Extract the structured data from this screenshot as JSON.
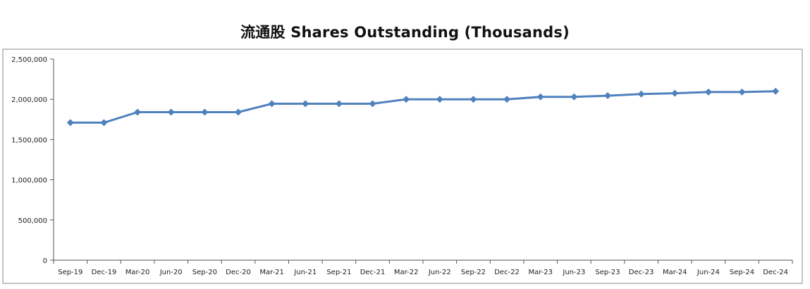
{
  "chart_data": {
    "type": "line",
    "title": "流通股 Shares Outstanding (Thousands)",
    "xlabel": "",
    "ylabel": "",
    "ylim": [
      0,
      2500000
    ],
    "yticks": [
      0,
      500000,
      1000000,
      1500000,
      2000000,
      2500000
    ],
    "ytick_labels": [
      "0",
      "500,000",
      "1,000,000",
      "1,500,000",
      "2,000,000",
      "2,500,000"
    ],
    "grid": false,
    "legend": "none",
    "line_color": "#4F81BD",
    "categories": [
      "Sep-19",
      "Dec-19",
      "Mar-20",
      "Jun-20",
      "Sep-20",
      "Dec-20",
      "Mar-21",
      "Jun-21",
      "Sep-21",
      "Dec-21",
      "Mar-22",
      "Jun-22",
      "Sep-22",
      "Dec-22",
      "Mar-23",
      "Jun-23",
      "Sep-23",
      "Dec-23",
      "Mar-24",
      "Jun-24",
      "Sep-24",
      "Dec-24"
    ],
    "series": [
      {
        "values": [
          1710000,
          1710000,
          1840000,
          1840000,
          1840000,
          1840000,
          1945000,
          1945000,
          1945000,
          1945000,
          2000000,
          2000000,
          2000000,
          2000000,
          2030000,
          2030000,
          2045000,
          2065000,
          2075000,
          2090000,
          2090000,
          2100000
        ]
      }
    ]
  }
}
